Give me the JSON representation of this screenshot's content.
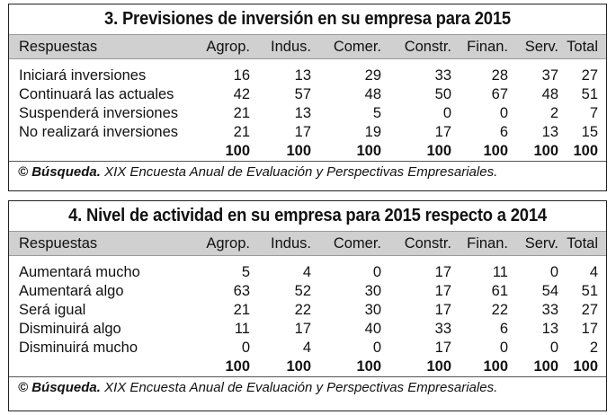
{
  "table3": {
    "title": "3. Previsiones de inversión en su empresa para 2015",
    "header": [
      "Respuestas",
      "Agrop.",
      "Indus.",
      "Comer.",
      "Constr.",
      "Finan.",
      "Serv.",
      "Total"
    ],
    "rows": [
      {
        "label": "Iniciará inversiones",
        "values": [
          "16",
          "13",
          "29",
          "33",
          "28",
          "37",
          "27"
        ]
      },
      {
        "label": "Continuará las actuales",
        "values": [
          "42",
          "57",
          "48",
          "50",
          "67",
          "48",
          "51"
        ]
      },
      {
        "label": "Suspenderá inversiones",
        "values": [
          "21",
          "13",
          "5",
          "0",
          "0",
          "2",
          "7"
        ]
      },
      {
        "label": "No realizará inversiones",
        "values": [
          "21",
          "17",
          "19",
          "17",
          "6",
          "13",
          "15"
        ]
      }
    ],
    "totals": [
      "100",
      "100",
      "100",
      "100",
      "100",
      "100",
      "100"
    ],
    "source_brand": "© Búsqueda.",
    "source_text": " XIX Encuesta Anual de Evaluación y Perspectivas Empresariales."
  },
  "table4": {
    "title": "4. Nivel de actividad en su empresa para 2015 respecto a 2014",
    "header": [
      "Respuestas",
      "Agrop.",
      "Indus.",
      "Comer.",
      "Constr.",
      "Finan.",
      "Serv.",
      "Total"
    ],
    "rows": [
      {
        "label": "Aumentará mucho",
        "values": [
          "5",
          "4",
          "0",
          "17",
          "11",
          "0",
          "4"
        ]
      },
      {
        "label": "Aumentará algo",
        "values": [
          "63",
          "52",
          "30",
          "17",
          "61",
          "54",
          "51"
        ]
      },
      {
        "label": "Será igual",
        "values": [
          "21",
          "22",
          "30",
          "17",
          "22",
          "33",
          "27"
        ]
      },
      {
        "label": "Disminuirá algo",
        "values": [
          "11",
          "17",
          "40",
          "33",
          "6",
          "13",
          "17"
        ]
      },
      {
        "label": "Disminuirá mucho",
        "values": [
          "0",
          "4",
          "0",
          "17",
          "0",
          "0",
          "2"
        ]
      }
    ],
    "totals": [
      "100",
      "100",
      "100",
      "100",
      "100",
      "100",
      "100"
    ],
    "source_brand": "© Búsqueda.",
    "source_text": " XIX Encuesta Anual de Evaluación y Perspectivas Empresariales."
  }
}
